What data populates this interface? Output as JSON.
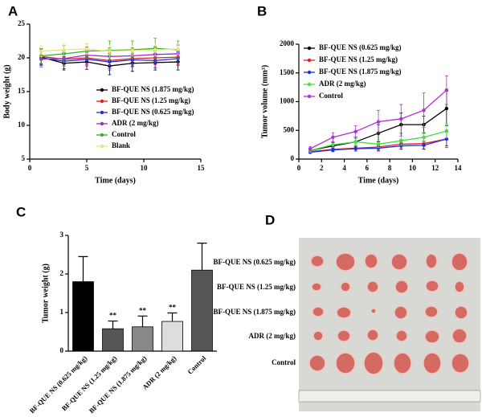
{
  "chart_data": [
    {
      "type": "line",
      "panel": "A",
      "ylabel": "Body weight (g)",
      "xlabel": "Time (days)",
      "xlim": [
        0,
        15
      ],
      "xticks": [
        0,
        5,
        10,
        15
      ],
      "ylim": [
        5,
        25
      ],
      "yticks": [
        5,
        10,
        15,
        20,
        25
      ],
      "x": [
        1,
        3,
        5,
        7,
        9,
        11,
        13
      ],
      "series": [
        {
          "name": "BF-QUE NS (1.875 mg/kg)",
          "color": "#000000",
          "values": [
            20.1,
            19.2,
            19.4,
            18.8,
            19.2,
            19.3,
            19.4
          ],
          "errors": [
            1.2,
            1.0,
            1.1,
            1.3,
            1.2,
            1.1,
            1.2
          ]
        },
        {
          "name": "BF-QUE NS (1.25 mg/kg)",
          "color": "#e02020",
          "values": [
            20.2,
            19.8,
            20.0,
            19.6,
            19.9,
            20.0,
            20.1
          ],
          "errors": [
            1.1,
            1.0,
            1.0,
            1.2,
            1.1,
            1.0,
            1.1
          ]
        },
        {
          "name": "BF-QUE NS (0.625 mg/kg)",
          "color": "#2030e0",
          "values": [
            20.0,
            19.5,
            19.8,
            19.4,
            19.7,
            19.6,
            19.9
          ],
          "errors": [
            1.0,
            1.1,
            1.0,
            1.2,
            1.0,
            1.1,
            1.0
          ]
        },
        {
          "name": "ADR (2 mg/kg)",
          "color": "#9a30c0",
          "values": [
            19.8,
            19.9,
            20.4,
            20.2,
            20.3,
            20.5,
            20.6
          ],
          "errors": [
            1.2,
            1.1,
            1.2,
            1.3,
            1.2,
            1.2,
            1.3
          ]
        },
        {
          "name": "Control",
          "color": "#30b030",
          "values": [
            20.3,
            20.6,
            21.0,
            21.1,
            21.2,
            21.4,
            21.2
          ],
          "errors": [
            1.1,
            1.2,
            1.1,
            1.4,
            1.3,
            1.5,
            1.3
          ]
        },
        {
          "name": "Blank",
          "color": "#e8e870",
          "values": [
            21.0,
            21.2,
            21.3,
            21.0,
            21.1,
            21.2,
            21.3
          ],
          "errors": [
            0.8,
            0.9,
            0.8,
            0.9,
            0.8,
            0.9,
            0.8
          ]
        }
      ]
    },
    {
      "type": "line",
      "panel": "B",
      "ylabel": "Tumor volume (mm³)",
      "xlabel": "Time (days)",
      "xlim": [
        0,
        14
      ],
      "xticks": [
        0,
        2,
        4,
        6,
        8,
        10,
        12,
        14
      ],
      "ylim": [
        0,
        2000
      ],
      "yticks": [
        0,
        500,
        1000,
        1500,
        2000
      ],
      "x": [
        1,
        3,
        5,
        7,
        9,
        11,
        13
      ],
      "series": [
        {
          "name": "BF-QUE NS (0.625 mg/kg)",
          "color": "#000000",
          "values": [
            150,
            230,
            300,
            450,
            600,
            600,
            880
          ],
          "errors": [
            30,
            60,
            80,
            150,
            200,
            150,
            300
          ]
        },
        {
          "name": "BF-QUE NS (1.25 mg/kg)",
          "color": "#e02020",
          "values": [
            130,
            170,
            190,
            210,
            260,
            270,
            350
          ],
          "errors": [
            20,
            40,
            50,
            60,
            80,
            90,
            150
          ]
        },
        {
          "name": "BF-QUE NS (1.875 mg/kg)",
          "color": "#2030e0",
          "values": [
            120,
            160,
            180,
            190,
            230,
            240,
            350
          ],
          "errors": [
            20,
            30,
            40,
            50,
            60,
            70,
            120
          ]
        },
        {
          "name": "ADR (2 mg/kg)",
          "color": "#40e040",
          "values": [
            150,
            250,
            300,
            260,
            320,
            380,
            490
          ],
          "errors": [
            30,
            50,
            60,
            60,
            80,
            90,
            120
          ]
        },
        {
          "name": "Control",
          "color": "#b030d0",
          "values": [
            180,
            380,
            480,
            650,
            700,
            850,
            1200
          ],
          "errors": [
            40,
            80,
            100,
            200,
            250,
            300,
            250
          ]
        }
      ]
    },
    {
      "type": "bar",
      "panel": "C",
      "ylabel": "Tumor weight (g)",
      "ylim": [
        0,
        3
      ],
      "yticks": [
        0,
        1,
        2,
        3
      ],
      "categories": [
        "BF-QUE NS (0.625 mg/kg)",
        "BF-QUE NS (1.25 mg/kg)",
        "BF-QUE NS (1.875 mg/kg)",
        "ADR (2 mg/kg)",
        "Control"
      ],
      "values": [
        1.8,
        0.58,
        0.63,
        0.77,
        2.1
      ],
      "errors": [
        0.65,
        0.2,
        0.28,
        0.22,
        0.7
      ],
      "colors": [
        "#000000",
        "#555555",
        "#888888",
        "#dddddd",
        "#555555"
      ],
      "significance": [
        null,
        "**",
        "**",
        "**",
        null
      ]
    }
  ],
  "photo": {
    "panel": "D",
    "rows": [
      "BF-QUE NS (0.625 mg/kg)",
      "BF-QUE NS (1.25 mg/kg)",
      "BF-QUE NS (1.875 mg/kg)",
      "ADR (2 mg/kg)",
      "Control"
    ]
  }
}
